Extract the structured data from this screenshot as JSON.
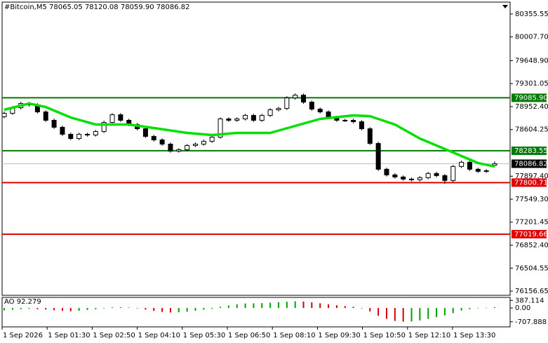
{
  "header": {
    "symbol": "#Bitcoin,M5",
    "open": "78065.05",
    "high": "78120.08",
    "low": "78059.90",
    "close": "78086.82"
  },
  "chart_data": [
    {
      "type": "candlestick",
      "ylim": [
        76093,
        80536
      ],
      "yticks": [
        {
          "value": 80355.55,
          "label": "80355.55"
        },
        {
          "value": 80007.7,
          "label": "80007.70"
        },
        {
          "value": 79648.9,
          "label": "79648.90"
        },
        {
          "value": 79301.05,
          "label": "79301.05"
        },
        {
          "value": 78952.4,
          "label": "78952.40"
        },
        {
          "value": 78604.25,
          "label": "78604.25"
        },
        {
          "value": 77897.4,
          "label": "77897.40"
        },
        {
          "value": 77549.3,
          "label": "77549.30"
        },
        {
          "value": 77201.45,
          "label": "77201.45"
        },
        {
          "value": 76852.4,
          "label": "76852.40"
        },
        {
          "value": 76504.55,
          "label": "76504.55"
        },
        {
          "value": 76156.65,
          "label": "76156.65"
        }
      ],
      "xlabels": [
        "1 Sep 2026",
        "1 Sep 01:30",
        "1 Sep 02:50",
        "1 Sep 04:10",
        "1 Sep 05:30",
        "1 Sep 06:50",
        "1 Sep 08:10",
        "1 Sep 09:30",
        "1 Sep 10:50",
        "1 Sep 12:10",
        "1 Sep 13:30"
      ],
      "open": [
        78800,
        78851,
        78935,
        78999,
        78978,
        78872,
        78745,
        78639,
        78533,
        78469,
        78533,
        78522,
        78575,
        78713,
        78829,
        78745,
        78681,
        78617,
        78501,
        78448,
        78384,
        78278,
        78299,
        78363,
        78384,
        78427,
        78490,
        78766,
        78745,
        78766,
        78819,
        78745,
        78819,
        78904,
        78925,
        79084,
        79126,
        79020,
        78914,
        78872,
        78787,
        78745,
        78745,
        78723,
        78617,
        78395,
        78003,
        77918,
        77886,
        77854,
        77844,
        77875,
        77939,
        77907,
        77833,
        78045,
        78109,
        78003,
        77971,
        78065.05
      ],
      "high": [
        78876,
        78960,
        79024,
        79024,
        79003,
        78897,
        78770,
        78664,
        78558,
        78558,
        78558,
        78600,
        78738,
        78854,
        78854,
        78770,
        78706,
        78642,
        78526,
        78473,
        78409,
        78324,
        78388,
        78409,
        78452,
        78515,
        78791,
        78791,
        78791,
        78844,
        78844,
        78844,
        78929,
        78950,
        79109,
        79151,
        79151,
        79045,
        78939,
        78897,
        78812,
        78770,
        78770,
        78748,
        78642,
        78420,
        78028,
        77943,
        77911,
        77879,
        77900,
        77964,
        77964,
        77932,
        78070,
        78134,
        78134,
        78028,
        78006,
        78120.08
      ],
      "low": [
        78775,
        78826,
        78910,
        78953,
        78847,
        78720,
        78614,
        78508,
        78444,
        78444,
        78497,
        78497,
        78550,
        78688,
        78720,
        78656,
        78592,
        78476,
        78423,
        78359,
        78253,
        78253,
        78274,
        78338,
        78359,
        78402,
        78465,
        78720,
        78720,
        78741,
        78720,
        78720,
        78794,
        78879,
        78900,
        79059,
        78995,
        78889,
        78847,
        78762,
        78720,
        78720,
        78698,
        78592,
        78370,
        77978,
        77893,
        77861,
        77829,
        77819,
        77819,
        77850,
        77882,
        77780,
        77808,
        78020,
        77978,
        77946,
        77946,
        78059.9
      ],
      "close": [
        78851,
        78935,
        78999,
        78978,
        78872,
        78745,
        78639,
        78533,
        78469,
        78533,
        78522,
        78575,
        78713,
        78829,
        78745,
        78681,
        78617,
        78501,
        78448,
        78384,
        78278,
        78299,
        78363,
        78384,
        78427,
        78490,
        78766,
        78745,
        78766,
        78819,
        78745,
        78819,
        78904,
        78925,
        79084,
        79126,
        79020,
        78914,
        78872,
        78787,
        78745,
        78745,
        78723,
        78617,
        78395,
        78003,
        77918,
        77886,
        77854,
        77844,
        77875,
        77939,
        77907,
        77833,
        78045,
        78109,
        78003,
        77971,
        77981,
        78086.82
      ],
      "ma": {
        "color": "#00e000",
        "x": [
          0,
          3,
          5,
          8,
          11,
          15,
          18,
          22,
          25,
          28,
          32,
          35,
          38,
          42,
          44,
          47,
          50,
          54,
          57,
          59
        ],
        "values": [
          78904,
          78999,
          78946,
          78787,
          78681,
          78681,
          78628,
          78554,
          78522,
          78554,
          78554,
          78660,
          78766,
          78819,
          78808,
          78681,
          78469,
          78257,
          78098,
          78045
        ]
      },
      "levels": [
        {
          "value": 79085.9,
          "label": "79085.90",
          "color": "#007a00"
        },
        {
          "value": 78283.55,
          "label": "78283.55",
          "color": "#007a00"
        },
        {
          "value": 77800.71,
          "label": "77800.71",
          "color": "#e00000"
        },
        {
          "value": 77019.66,
          "label": "77019.66",
          "color": "#e00000"
        }
      ],
      "last": {
        "value": 78086.82,
        "label": "78086.82"
      }
    },
    {
      "type": "bar",
      "title": "AO",
      "value_label": "92.279",
      "ylim": [
        -968,
        542
      ],
      "yticks": [
        {
          "value": 387.114,
          "label": "387.114"
        },
        {
          "value": 0,
          "label": "0.00"
        },
        {
          "value": -707.888,
          "label": "-707.888"
        }
      ],
      "up_color": "#00a000",
      "down_color": "#d00000",
      "values": [
        -120,
        -90,
        -60,
        -40,
        -60,
        -80,
        -120,
        -150,
        -170,
        -140,
        -100,
        -60,
        -20,
        30,
        40,
        20,
        -20,
        -80,
        -150,
        -200,
        -230,
        -220,
        -190,
        -140,
        -90,
        -40,
        60,
        130,
        190,
        230,
        240,
        250,
        270,
        290,
        320,
        340,
        330,
        290,
        240,
        190,
        140,
        100,
        60,
        -20,
        -180,
        -400,
        -560,
        -660,
        -700,
        -690,
        -640,
        -560,
        -470,
        -380,
        -260,
        -130,
        -60,
        -20,
        10,
        40
      ]
    }
  ]
}
